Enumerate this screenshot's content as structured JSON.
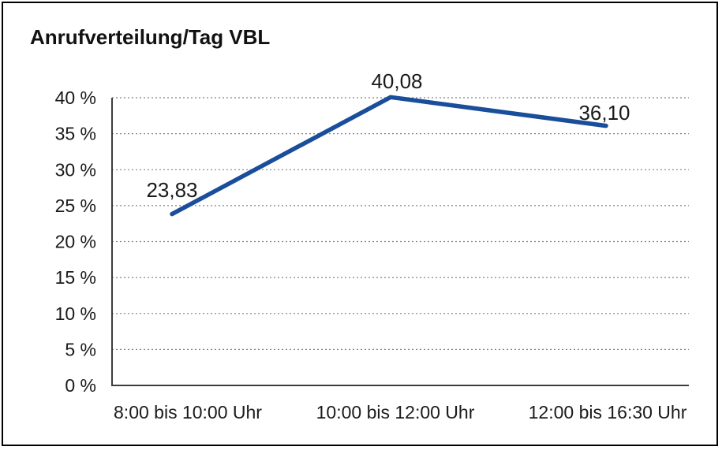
{
  "page": {
    "background": "#ffffff",
    "border_color": "#000000"
  },
  "chart_data": {
    "type": "line",
    "title": "Anrufverteilung/Tag VBL",
    "categories": [
      "8:00 bis 10:00 Uhr",
      "10:00 bis 12:00 Uhr",
      "12:00 bis 16:30 Uhr"
    ],
    "values": [
      23.83,
      40.08,
      36.1
    ],
    "data_labels": [
      "23,83",
      "40,08",
      "36,10"
    ],
    "xlabel": "",
    "ylabel": "",
    "ylim": [
      0,
      40
    ],
    "ytick_step": 5,
    "ytick_labels": [
      "0 %",
      "5 %",
      "10 %",
      "15 %",
      "20 %",
      "25 %",
      "30 %",
      "35 %",
      "40 %"
    ],
    "grid": "horizontal-dotted",
    "legend": "none",
    "line_color": "#1a4e9b",
    "axis_color": "#3d3d3d",
    "gridline_color": "#808080",
    "text_color": "#1a1a1a"
  }
}
